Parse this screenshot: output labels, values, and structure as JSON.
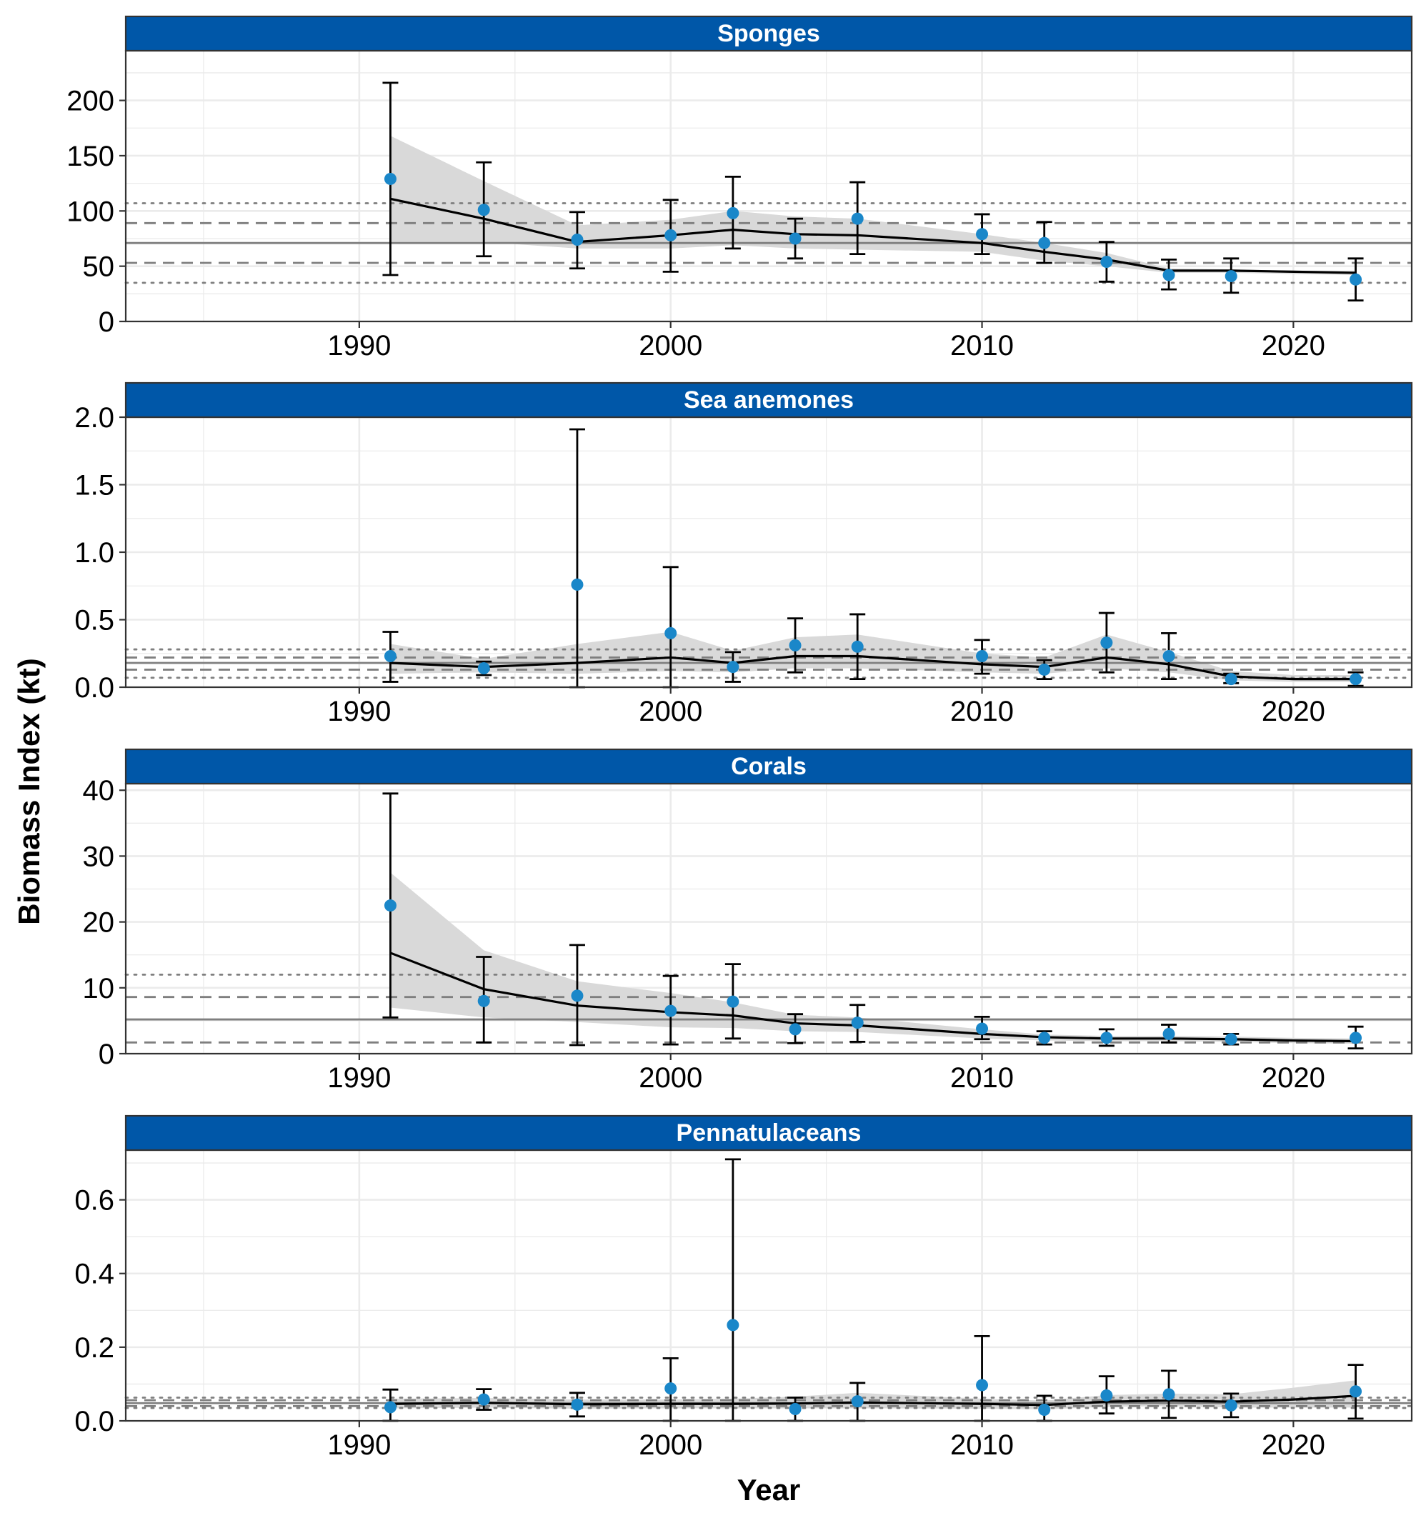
{
  "chart_data": {
    "type": "line",
    "xlabel": "Year",
    "ylabel": "Biomass Index (kt)",
    "xlim": [
      1982.5,
      2023.8
    ],
    "x_ticks": [
      1990,
      2000,
      2010,
      2020
    ],
    "colors": {
      "strip": "#0057A8",
      "points": "#1A87C9",
      "trend": "#000000",
      "ribbon": "#D9D9D9",
      "reference_lines": "#7F7F7F",
      "grid": "#EBEBEB"
    },
    "grid": true,
    "panels": [
      {
        "title": "Sponges",
        "ylim": [
          0,
          245
        ],
        "y_ticks": [
          0,
          50,
          100,
          150,
          200
        ],
        "y_tick_labels": [
          "0",
          "50",
          "100",
          "150",
          "200"
        ],
        "reference_lines": {
          "solid": 71,
          "dashed": [
            53,
            89
          ],
          "dotted": [
            35,
            107
          ]
        },
        "points": [
          {
            "year": 1991,
            "value": 129,
            "lo": 42,
            "hi": 216
          },
          {
            "year": 1994,
            "value": 101,
            "lo": 59,
            "hi": 144
          },
          {
            "year": 1997,
            "value": 74,
            "lo": 48,
            "hi": 99
          },
          {
            "year": 2000,
            "value": 78,
            "lo": 45,
            "hi": 110
          },
          {
            "year": 2002,
            "value": 98,
            "lo": 66,
            "hi": 131
          },
          {
            "year": 2004,
            "value": 75,
            "lo": 57,
            "hi": 93
          },
          {
            "year": 2006,
            "value": 93,
            "lo": 61,
            "hi": 126
          },
          {
            "year": 2010,
            "value": 79,
            "lo": 61,
            "hi": 97
          },
          {
            "year": 2012,
            "value": 71,
            "lo": 53,
            "hi": 90
          },
          {
            "year": 2014,
            "value": 54,
            "lo": 36,
            "hi": 72
          },
          {
            "year": 2016,
            "value": 42,
            "lo": 29,
            "hi": 56
          },
          {
            "year": 2018,
            "value": 41,
            "lo": 26,
            "hi": 57
          },
          {
            "year": 2022,
            "value": 38,
            "lo": 19,
            "hi": 57
          }
        ],
        "trend": [
          [
            1991,
            111
          ],
          [
            1994,
            93
          ],
          [
            1997,
            72
          ],
          [
            2000,
            78
          ],
          [
            2002,
            83
          ],
          [
            2004,
            79
          ],
          [
            2006,
            78
          ],
          [
            2010,
            71
          ],
          [
            2012,
            63
          ],
          [
            2014,
            56
          ],
          [
            2016,
            46
          ],
          [
            2018,
            46
          ],
          [
            2020,
            45
          ],
          [
            2022,
            44
          ]
        ],
        "ribbon_upper": [
          [
            1991,
            168
          ],
          [
            1994,
            127
          ],
          [
            1997,
            87
          ],
          [
            2000,
            92
          ],
          [
            2002,
            100
          ],
          [
            2004,
            95
          ],
          [
            2006,
            93
          ],
          [
            2010,
            79
          ],
          [
            2012,
            71
          ],
          [
            2014,
            62
          ],
          [
            2016,
            48
          ],
          [
            2018,
            47
          ],
          [
            2020,
            46
          ],
          [
            2022,
            46
          ]
        ],
        "ribbon_lower": [
          [
            1991,
            72
          ],
          [
            1994,
            72
          ],
          [
            1997,
            66
          ],
          [
            2000,
            66
          ],
          [
            2002,
            69
          ],
          [
            2004,
            66
          ],
          [
            2006,
            65
          ],
          [
            2010,
            63
          ],
          [
            2012,
            55
          ],
          [
            2014,
            50
          ],
          [
            2016,
            44
          ],
          [
            2018,
            44
          ],
          [
            2020,
            43
          ],
          [
            2022,
            42
          ]
        ]
      },
      {
        "title": "Sea anemones",
        "ylim": [
          0,
          2.0
        ],
        "y_ticks": [
          0,
          0.5,
          1.0,
          1.5,
          2.0
        ],
        "y_tick_labels": [
          "0.0",
          "0.5",
          "1.0",
          "1.5",
          "2.0"
        ],
        "reference_lines": {
          "solid": 0.18,
          "dashed": [
            0.13,
            0.22
          ],
          "dotted": [
            0.07,
            0.28
          ]
        },
        "points": [
          {
            "year": 1991,
            "value": 0.23,
            "lo": 0.04,
            "hi": 0.41
          },
          {
            "year": 1994,
            "value": 0.14,
            "lo": 0.09,
            "hi": 0.19
          },
          {
            "year": 1997,
            "value": 0.76,
            "lo": 0.0,
            "hi": 1.91
          },
          {
            "year": 2000,
            "value": 0.4,
            "lo": 0.0,
            "hi": 0.89
          },
          {
            "year": 2002,
            "value": 0.15,
            "lo": 0.04,
            "hi": 0.26
          },
          {
            "year": 2004,
            "value": 0.31,
            "lo": 0.11,
            "hi": 0.51
          },
          {
            "year": 2006,
            "value": 0.3,
            "lo": 0.06,
            "hi": 0.54
          },
          {
            "year": 2010,
            "value": 0.23,
            "lo": 0.1,
            "hi": 0.35
          },
          {
            "year": 2012,
            "value": 0.13,
            "lo": 0.06,
            "hi": 0.2
          },
          {
            "year": 2014,
            "value": 0.33,
            "lo": 0.11,
            "hi": 0.55
          },
          {
            "year": 2016,
            "value": 0.23,
            "lo": 0.06,
            "hi": 0.4
          },
          {
            "year": 2018,
            "value": 0.06,
            "lo": 0.03,
            "hi": 0.1
          },
          {
            "year": 2022,
            "value": 0.06,
            "lo": 0.01,
            "hi": 0.11
          }
        ],
        "trend": [
          [
            1991,
            0.18
          ],
          [
            1994,
            0.15
          ],
          [
            1997,
            0.18
          ],
          [
            2000,
            0.22
          ],
          [
            2002,
            0.18
          ],
          [
            2004,
            0.23
          ],
          [
            2006,
            0.23
          ],
          [
            2010,
            0.17
          ],
          [
            2012,
            0.15
          ],
          [
            2014,
            0.22
          ],
          [
            2016,
            0.17
          ],
          [
            2018,
            0.08
          ],
          [
            2020,
            0.06
          ],
          [
            2022,
            0.06
          ]
        ],
        "ribbon_upper": [
          [
            1991,
            0.32
          ],
          [
            1994,
            0.21
          ],
          [
            1997,
            0.32
          ],
          [
            2000,
            0.41
          ],
          [
            2002,
            0.27
          ],
          [
            2004,
            0.37
          ],
          [
            2006,
            0.39
          ],
          [
            2010,
            0.25
          ],
          [
            2012,
            0.22
          ],
          [
            2014,
            0.39
          ],
          [
            2016,
            0.26
          ],
          [
            2018,
            0.12
          ],
          [
            2020,
            0.09
          ],
          [
            2022,
            0.09
          ]
        ],
        "ribbon_lower": [
          [
            1991,
            0.1
          ],
          [
            1994,
            0.11
          ],
          [
            1997,
            0.1
          ],
          [
            2000,
            0.12
          ],
          [
            2002,
            0.11
          ],
          [
            2004,
            0.14
          ],
          [
            2006,
            0.14
          ],
          [
            2010,
            0.11
          ],
          [
            2012,
            0.1
          ],
          [
            2014,
            0.14
          ],
          [
            2016,
            0.11
          ],
          [
            2018,
            0.05
          ],
          [
            2020,
            0.04
          ],
          [
            2022,
            0.04
          ]
        ]
      },
      {
        "title": "Corals",
        "ylim": [
          0,
          41
        ],
        "y_ticks": [
          0,
          10,
          20,
          30,
          40
        ],
        "y_tick_labels": [
          "0",
          "10",
          "20",
          "30",
          "40"
        ],
        "reference_lines": {
          "solid": 5.2,
          "dashed": [
            1.7,
            8.6
          ],
          "dotted": [
            12.0
          ]
        },
        "points": [
          {
            "year": 1991,
            "value": 22.5,
            "lo": 5.5,
            "hi": 39.5
          },
          {
            "year": 1994,
            "value": 8.0,
            "lo": 1.7,
            "hi": 14.7
          },
          {
            "year": 1997,
            "value": 8.8,
            "lo": 1.3,
            "hi": 16.5
          },
          {
            "year": 2000,
            "value": 6.5,
            "lo": 1.4,
            "hi": 11.8
          },
          {
            "year": 2002,
            "value": 7.9,
            "lo": 2.3,
            "hi": 13.6
          },
          {
            "year": 2004,
            "value": 3.7,
            "lo": 1.6,
            "hi": 6.0
          },
          {
            "year": 2006,
            "value": 4.7,
            "lo": 1.8,
            "hi": 7.4
          },
          {
            "year": 2010,
            "value": 3.8,
            "lo": 2.2,
            "hi": 5.6
          },
          {
            "year": 2012,
            "value": 2.4,
            "lo": 1.4,
            "hi": 3.4
          },
          {
            "year": 2014,
            "value": 2.4,
            "lo": 1.2,
            "hi": 3.7
          },
          {
            "year": 2016,
            "value": 3.0,
            "lo": 1.7,
            "hi": 4.4
          },
          {
            "year": 2018,
            "value": 2.2,
            "lo": 1.4,
            "hi": 3.0
          },
          {
            "year": 2022,
            "value": 2.4,
            "lo": 0.8,
            "hi": 4.1
          }
        ],
        "trend": [
          [
            1991,
            15.3
          ],
          [
            1994,
            9.8
          ],
          [
            1997,
            7.3
          ],
          [
            2000,
            6.3
          ],
          [
            2002,
            5.8
          ],
          [
            2004,
            4.6
          ],
          [
            2006,
            4.3
          ],
          [
            2010,
            3.0
          ],
          [
            2012,
            2.5
          ],
          [
            2014,
            2.3
          ],
          [
            2016,
            2.3
          ],
          [
            2018,
            2.2
          ],
          [
            2020,
            2.0
          ],
          [
            2022,
            1.9
          ]
        ],
        "ribbon_upper": [
          [
            1991,
            27.5
          ],
          [
            1994,
            15.7
          ],
          [
            1997,
            11.0
          ],
          [
            2000,
            9.2
          ],
          [
            2002,
            7.8
          ],
          [
            2004,
            5.9
          ],
          [
            2006,
            5.5
          ],
          [
            2010,
            3.7
          ],
          [
            2012,
            2.9
          ],
          [
            2014,
            2.7
          ],
          [
            2016,
            2.7
          ],
          [
            2018,
            2.6
          ],
          [
            2020,
            2.4
          ],
          [
            2022,
            2.3
          ]
        ],
        "ribbon_lower": [
          [
            1991,
            7.0
          ],
          [
            1994,
            5.5
          ],
          [
            1997,
            4.8
          ],
          [
            2000,
            4.0
          ],
          [
            2002,
            3.9
          ],
          [
            2004,
            3.4
          ],
          [
            2006,
            3.3
          ],
          [
            2010,
            2.3
          ],
          [
            2012,
            2.0
          ],
          [
            2014,
            1.9
          ],
          [
            2016,
            1.9
          ],
          [
            2018,
            1.8
          ],
          [
            2020,
            1.6
          ],
          [
            2022,
            1.5
          ]
        ]
      },
      {
        "title": "Pennatulaceans",
        "ylim": [
          0,
          0.735
        ],
        "y_ticks": [
          0,
          0.2,
          0.4,
          0.6
        ],
        "y_tick_labels": [
          "0.0",
          "0.2",
          "0.4",
          "0.6"
        ],
        "reference_lines": {
          "solid": 0.048,
          "dashed": [
            0.04,
            0.056
          ],
          "dotted": [
            0.035,
            0.063
          ]
        },
        "points": [
          {
            "year": 1991,
            "value": 0.037,
            "lo": 0.0,
            "hi": 0.085
          },
          {
            "year": 1994,
            "value": 0.058,
            "lo": 0.03,
            "hi": 0.086
          },
          {
            "year": 1997,
            "value": 0.044,
            "lo": 0.012,
            "hi": 0.076
          },
          {
            "year": 2000,
            "value": 0.088,
            "lo": 0.0,
            "hi": 0.17
          },
          {
            "year": 2002,
            "value": 0.26,
            "lo": 0.0,
            "hi": 0.71
          },
          {
            "year": 2004,
            "value": 0.032,
            "lo": 0.0,
            "hi": 0.063
          },
          {
            "year": 2006,
            "value": 0.053,
            "lo": 0.0,
            "hi": 0.103
          },
          {
            "year": 2010,
            "value": 0.097,
            "lo": 0.0,
            "hi": 0.23
          },
          {
            "year": 2012,
            "value": 0.03,
            "lo": 0.0,
            "hi": 0.068
          },
          {
            "year": 2014,
            "value": 0.069,
            "lo": 0.02,
            "hi": 0.121
          },
          {
            "year": 2016,
            "value": 0.072,
            "lo": 0.008,
            "hi": 0.136
          },
          {
            "year": 2018,
            "value": 0.042,
            "lo": 0.01,
            "hi": 0.074
          },
          {
            "year": 2022,
            "value": 0.08,
            "lo": 0.006,
            "hi": 0.152
          }
        ],
        "trend": [
          [
            1991,
            0.046
          ],
          [
            1994,
            0.049
          ],
          [
            1997,
            0.045
          ],
          [
            2000,
            0.046
          ],
          [
            2002,
            0.046
          ],
          [
            2004,
            0.047
          ],
          [
            2006,
            0.05
          ],
          [
            2010,
            0.046
          ],
          [
            2012,
            0.043
          ],
          [
            2014,
            0.052
          ],
          [
            2016,
            0.055
          ],
          [
            2018,
            0.052
          ],
          [
            2020,
            0.058
          ],
          [
            2022,
            0.068
          ]
        ],
        "ribbon_upper": [
          [
            1991,
            0.06
          ],
          [
            1994,
            0.062
          ],
          [
            1997,
            0.058
          ],
          [
            2000,
            0.058
          ],
          [
            2002,
            0.06
          ],
          [
            2004,
            0.066
          ],
          [
            2006,
            0.076
          ],
          [
            2010,
            0.06
          ],
          [
            2012,
            0.055
          ],
          [
            2014,
            0.07
          ],
          [
            2016,
            0.074
          ],
          [
            2018,
            0.072
          ],
          [
            2020,
            0.09
          ],
          [
            2022,
            0.11
          ]
        ],
        "ribbon_lower": [
          [
            1991,
            0.034
          ],
          [
            1994,
            0.036
          ],
          [
            1997,
            0.033
          ],
          [
            2000,
            0.034
          ],
          [
            2002,
            0.034
          ],
          [
            2004,
            0.034
          ],
          [
            2006,
            0.034
          ],
          [
            2010,
            0.033
          ],
          [
            2012,
            0.031
          ],
          [
            2014,
            0.038
          ],
          [
            2016,
            0.04
          ],
          [
            2018,
            0.036
          ],
          [
            2020,
            0.036
          ],
          [
            2022,
            0.036
          ]
        ]
      }
    ]
  }
}
